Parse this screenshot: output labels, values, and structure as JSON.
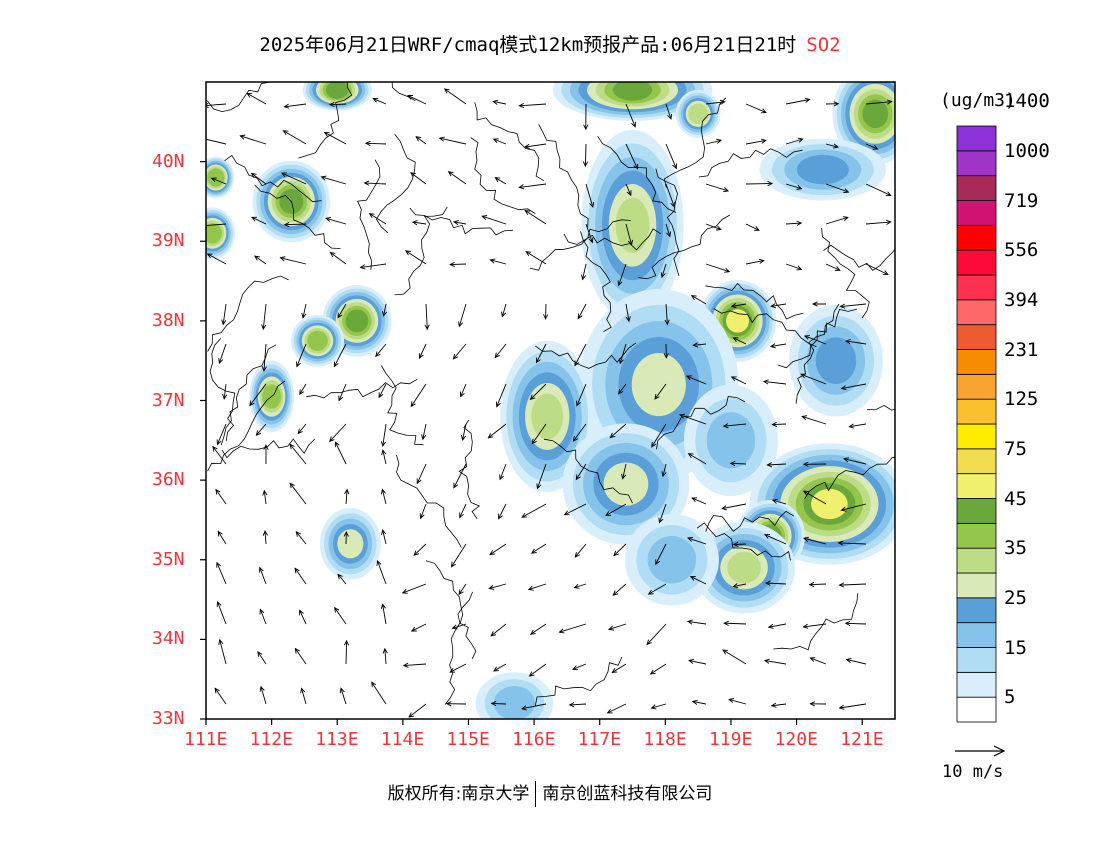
{
  "title": {
    "main": "2025年06月21日WRF/cmaq模式12km预报产品:06月21日21时",
    "species": "SO2"
  },
  "map": {
    "lon_range": [
      111,
      121.5
    ],
    "lat_range": [
      33,
      41
    ],
    "lat_ticks": [
      "33N",
      "34N",
      "35N",
      "36N",
      "37N",
      "38N",
      "39N",
      "40N"
    ],
    "lon_ticks": [
      "111E",
      "112E",
      "113E",
      "114E",
      "115E",
      "116E",
      "117E",
      "118E",
      "119E",
      "120E",
      "121E"
    ],
    "plumes": [
      {
        "lon": 117.6,
        "lat": 36.95,
        "rx": 0.9,
        "ry": 0.35,
        "level": 9
      },
      {
        "lon": 120.5,
        "lat": 35.7,
        "rx": 0.9,
        "ry": 0.55,
        "level": 9
      },
      {
        "lon": 119.1,
        "lat": 38.0,
        "rx": 0.4,
        "ry": 0.35,
        "level": 9
      },
      {
        "lon": 112.3,
        "lat": 39.5,
        "rx": 0.4,
        "ry": 0.35,
        "level": 8
      },
      {
        "lon": 113.3,
        "lat": 38.0,
        "rx": 0.35,
        "ry": 0.3,
        "level": 8
      },
      {
        "lon": 112.7,
        "lat": 37.75,
        "rx": 0.25,
        "ry": 0.2,
        "level": 7
      },
      {
        "lon": 117.5,
        "lat": 39.2,
        "rx": 0.55,
        "ry": 0.9,
        "level": 6
      },
      {
        "lon": 117.9,
        "lat": 37.2,
        "rx": 0.9,
        "ry": 0.9,
        "level": 5
      },
      {
        "lon": 116.2,
        "lat": 36.8,
        "rx": 0.5,
        "ry": 0.7,
        "level": 6
      },
      {
        "lon": 117.4,
        "lat": 35.95,
        "rx": 0.7,
        "ry": 0.55,
        "level": 5
      },
      {
        "lon": 119.6,
        "lat": 35.3,
        "rx": 0.35,
        "ry": 0.3,
        "level": 8
      },
      {
        "lon": 119.2,
        "lat": 34.9,
        "rx": 0.55,
        "ry": 0.4,
        "level": 6
      },
      {
        "lon": 117.5,
        "lat": 40.9,
        "rx": 0.9,
        "ry": 0.25,
        "level": 8
      },
      {
        "lon": 121.2,
        "lat": 40.6,
        "rx": 0.45,
        "ry": 0.45,
        "level": 8
      },
      {
        "lon": 113.0,
        "lat": 40.9,
        "rx": 0.35,
        "ry": 0.15,
        "level": 8
      },
      {
        "lon": 111.1,
        "lat": 39.1,
        "rx": 0.2,
        "ry": 0.2,
        "level": 7
      },
      {
        "lon": 111.15,
        "lat": 39.8,
        "rx": 0.15,
        "ry": 0.15,
        "level": 7
      },
      {
        "lon": 112.0,
        "lat": 37.05,
        "rx": 0.2,
        "ry": 0.3,
        "level": 7
      },
      {
        "lon": 118.5,
        "lat": 40.6,
        "rx": 0.2,
        "ry": 0.18,
        "level": 6
      },
      {
        "lon": 120.6,
        "lat": 37.5,
        "rx": 0.5,
        "ry": 0.5,
        "level": 4
      },
      {
        "lon": 119.0,
        "lat": 36.5,
        "rx": 0.5,
        "ry": 0.5,
        "level": 3
      },
      {
        "lon": 118.1,
        "lat": 35.0,
        "rx": 0.5,
        "ry": 0.4,
        "level": 3
      },
      {
        "lon": 113.2,
        "lat": 35.2,
        "rx": 0.3,
        "ry": 0.3,
        "level": 5
      },
      {
        "lon": 115.7,
        "lat": 33.2,
        "rx": 0.4,
        "ry": 0.25,
        "level": 3
      },
      {
        "lon": 120.4,
        "lat": 39.9,
        "rx": 0.7,
        "ry": 0.25,
        "level": 4
      }
    ]
  },
  "colorbar": {
    "unit": "(ug/m3)",
    "colors": [
      "#ffffff",
      "#d9eefb",
      "#b0dcf4",
      "#86c3ea",
      "#5b9fd8",
      "#d9e9b8",
      "#bddc86",
      "#95c64c",
      "#6ba83b",
      "#f0f06e",
      "#f2dc50",
      "#ffec00",
      "#fbc02d",
      "#f7a530",
      "#f78c00",
      "#ee5a32",
      "#fe6868",
      "#fe3150",
      "#fd0a3a",
      "#ff0000",
      "#d01372",
      "#a82b57",
      "#a033c8",
      "#8c32d8"
    ],
    "labels": [
      {
        "text": "5",
        "after": 1
      },
      {
        "text": "15",
        "after": 3
      },
      {
        "text": "25",
        "after": 5
      },
      {
        "text": "35",
        "after": 7
      },
      {
        "text": "45",
        "after": 9
      },
      {
        "text": "75",
        "after": 11
      },
      {
        "text": "125",
        "after": 13
      },
      {
        "text": "231",
        "after": 15
      },
      {
        "text": "394",
        "after": 17
      },
      {
        "text": "556",
        "after": 19
      },
      {
        "text": "719",
        "after": 21
      },
      {
        "text": "1000",
        "after": 23
      },
      {
        "text": "1400",
        "after": 25
      }
    ]
  },
  "wind_reference": {
    "label": "10 m/s"
  },
  "footer": {
    "left": "版权所有:南京大学",
    "right": "南京创蓝科技有限公司"
  }
}
